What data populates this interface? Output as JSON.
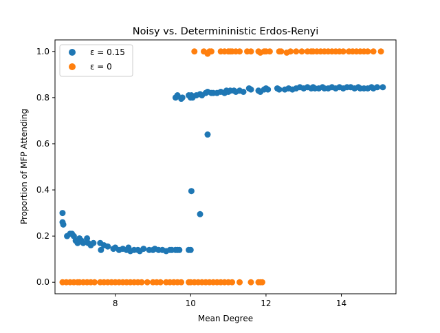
{
  "chart_data": {
    "type": "scatter",
    "title": "Noisy vs. Determininistic Erdos-Renyi",
    "xlabel": "Mean Degree",
    "ylabel": "Proportion of MFP Attending",
    "xlim": [
      6.4,
      15.45
    ],
    "ylim": [
      -0.05,
      1.05
    ],
    "xticks": [
      8,
      10,
      12,
      14
    ],
    "yticks": [
      0.0,
      0.2,
      0.4,
      0.6,
      0.8,
      1.0
    ],
    "xtick_labels": [
      "8",
      "10",
      "12",
      "14"
    ],
    "ytick_labels": [
      "0.0",
      "0.2",
      "0.4",
      "0.6",
      "0.8",
      "1.0"
    ],
    "grid": false,
    "legend_placement": "upper-left",
    "series": [
      {
        "name": "ε = 0.15",
        "color": "#1f77b4",
        "points": [
          [
            6.6,
            0.3
          ],
          [
            6.6,
            0.26
          ],
          [
            6.62,
            0.25
          ],
          [
            6.72,
            0.2
          ],
          [
            6.8,
            0.21
          ],
          [
            6.85,
            0.21
          ],
          [
            6.9,
            0.2
          ],
          [
            6.95,
            0.18
          ],
          [
            7.0,
            0.17
          ],
          [
            7.05,
            0.19
          ],
          [
            7.1,
            0.18
          ],
          [
            7.15,
            0.17
          ],
          [
            7.25,
            0.19
          ],
          [
            7.28,
            0.17
          ],
          [
            7.35,
            0.16
          ],
          [
            7.42,
            0.17
          ],
          [
            7.6,
            0.17
          ],
          [
            7.62,
            0.14
          ],
          [
            7.7,
            0.16
          ],
          [
            7.8,
            0.155
          ],
          [
            7.95,
            0.145
          ],
          [
            8.0,
            0.15
          ],
          [
            8.1,
            0.14
          ],
          [
            8.2,
            0.145
          ],
          [
            8.3,
            0.14
          ],
          [
            8.35,
            0.15
          ],
          [
            8.4,
            0.135
          ],
          [
            8.5,
            0.14
          ],
          [
            8.6,
            0.14
          ],
          [
            8.65,
            0.135
          ],
          [
            8.75,
            0.145
          ],
          [
            8.9,
            0.14
          ],
          [
            9.0,
            0.14
          ],
          [
            9.05,
            0.145
          ],
          [
            9.15,
            0.14
          ],
          [
            9.25,
            0.14
          ],
          [
            9.35,
            0.135
          ],
          [
            9.45,
            0.14
          ],
          [
            9.5,
            0.14
          ],
          [
            9.6,
            0.14
          ],
          [
            9.65,
            0.14
          ],
          [
            9.7,
            0.14
          ],
          [
            9.95,
            0.14
          ],
          [
            10.0,
            0.14
          ],
          [
            10.02,
            0.395
          ],
          [
            10.25,
            0.295
          ],
          [
            10.45,
            0.64
          ],
          [
            9.6,
            0.8
          ],
          [
            9.65,
            0.81
          ],
          [
            9.75,
            0.795
          ],
          [
            9.78,
            0.8
          ],
          [
            9.95,
            0.81
          ],
          [
            10.0,
            0.8
          ],
          [
            10.02,
            0.81
          ],
          [
            10.05,
            0.8
          ],
          [
            10.15,
            0.81
          ],
          [
            10.25,
            0.815
          ],
          [
            10.3,
            0.81
          ],
          [
            10.4,
            0.82
          ],
          [
            10.45,
            0.825
          ],
          [
            10.55,
            0.82
          ],
          [
            10.6,
            0.82
          ],
          [
            10.7,
            0.82
          ],
          [
            10.8,
            0.825
          ],
          [
            10.9,
            0.82
          ],
          [
            10.95,
            0.83
          ],
          [
            11.0,
            0.825
          ],
          [
            11.05,
            0.83
          ],
          [
            11.15,
            0.83
          ],
          [
            11.2,
            0.825
          ],
          [
            11.3,
            0.83
          ],
          [
            11.4,
            0.825
          ],
          [
            11.55,
            0.84
          ],
          [
            11.6,
            0.835
          ],
          [
            11.8,
            0.83
          ],
          [
            11.85,
            0.825
          ],
          [
            11.95,
            0.835
          ],
          [
            12.0,
            0.84
          ],
          [
            12.05,
            0.835
          ],
          [
            12.3,
            0.84
          ],
          [
            12.35,
            0.835
          ],
          [
            12.5,
            0.835
          ],
          [
            12.6,
            0.84
          ],
          [
            12.7,
            0.835
          ],
          [
            12.8,
            0.84
          ],
          [
            12.9,
            0.845
          ],
          [
            13.0,
            0.84
          ],
          [
            13.1,
            0.845
          ],
          [
            13.2,
            0.84
          ],
          [
            13.25,
            0.845
          ],
          [
            13.3,
            0.84
          ],
          [
            13.4,
            0.84
          ],
          [
            13.5,
            0.845
          ],
          [
            13.55,
            0.84
          ],
          [
            13.65,
            0.84
          ],
          [
            13.75,
            0.845
          ],
          [
            13.85,
            0.84
          ],
          [
            13.95,
            0.845
          ],
          [
            14.05,
            0.84
          ],
          [
            14.15,
            0.845
          ],
          [
            14.25,
            0.845
          ],
          [
            14.35,
            0.84
          ],
          [
            14.45,
            0.845
          ],
          [
            14.5,
            0.84
          ],
          [
            14.6,
            0.84
          ],
          [
            14.7,
            0.84
          ],
          [
            14.8,
            0.845
          ],
          [
            14.85,
            0.84
          ],
          [
            14.95,
            0.845
          ],
          [
            15.1,
            0.845
          ]
        ]
      },
      {
        "name": "ε = 0",
        "color": "#ff7f0e",
        "points": [
          [
            6.6,
            0.0
          ],
          [
            6.7,
            0.0
          ],
          [
            6.8,
            0.0
          ],
          [
            6.9,
            0.0
          ],
          [
            7.0,
            0.0
          ],
          [
            7.05,
            0.0
          ],
          [
            7.15,
            0.0
          ],
          [
            7.25,
            0.0
          ],
          [
            7.35,
            0.0
          ],
          [
            7.45,
            0.0
          ],
          [
            7.6,
            0.0
          ],
          [
            7.7,
            0.0
          ],
          [
            7.8,
            0.0
          ],
          [
            7.9,
            0.0
          ],
          [
            8.0,
            0.0
          ],
          [
            8.1,
            0.0
          ],
          [
            8.2,
            0.0
          ],
          [
            8.3,
            0.0
          ],
          [
            8.4,
            0.0
          ],
          [
            8.5,
            0.0
          ],
          [
            8.6,
            0.0
          ],
          [
            8.7,
            0.0
          ],
          [
            8.85,
            0.0
          ],
          [
            9.0,
            0.0
          ],
          [
            9.1,
            0.0
          ],
          [
            9.2,
            0.0
          ],
          [
            9.35,
            0.0
          ],
          [
            9.45,
            0.0
          ],
          [
            9.55,
            0.0
          ],
          [
            9.65,
            0.0
          ],
          [
            9.75,
            0.0
          ],
          [
            9.95,
            0.0
          ],
          [
            10.0,
            0.0
          ],
          [
            10.1,
            0.0
          ],
          [
            10.2,
            0.0
          ],
          [
            10.3,
            0.0
          ],
          [
            10.4,
            0.0
          ],
          [
            10.5,
            0.0
          ],
          [
            10.6,
            0.0
          ],
          [
            10.7,
            0.0
          ],
          [
            10.8,
            0.0
          ],
          [
            10.9,
            0.0
          ],
          [
            11.0,
            0.0
          ],
          [
            11.1,
            0.0
          ],
          [
            11.3,
            0.0
          ],
          [
            11.6,
            0.0
          ],
          [
            11.8,
            0.0
          ],
          [
            11.85,
            0.0
          ],
          [
            11.9,
            0.0
          ],
          [
            10.1,
            1.0
          ],
          [
            10.35,
            1.0
          ],
          [
            10.45,
            0.99
          ],
          [
            10.5,
            1.0
          ],
          [
            10.55,
            1.0
          ],
          [
            10.8,
            1.0
          ],
          [
            10.9,
            1.0
          ],
          [
            11.0,
            1.0
          ],
          [
            11.05,
            1.0
          ],
          [
            11.1,
            1.0
          ],
          [
            11.2,
            1.0
          ],
          [
            11.3,
            1.0
          ],
          [
            11.5,
            1.0
          ],
          [
            11.6,
            1.0
          ],
          [
            11.8,
            1.0
          ],
          [
            11.85,
            0.995
          ],
          [
            11.95,
            1.0
          ],
          [
            12.0,
            1.0
          ],
          [
            12.1,
            1.0
          ],
          [
            12.35,
            1.0
          ],
          [
            12.4,
            1.0
          ],
          [
            12.55,
            0.995
          ],
          [
            12.65,
            1.0
          ],
          [
            12.8,
            1.0
          ],
          [
            12.95,
            1.0
          ],
          [
            13.1,
            1.0
          ],
          [
            13.2,
            1.0
          ],
          [
            13.25,
            1.0
          ],
          [
            13.35,
            1.0
          ],
          [
            13.45,
            1.0
          ],
          [
            13.55,
            1.0
          ],
          [
            13.65,
            1.0
          ],
          [
            13.75,
            1.0
          ],
          [
            13.85,
            1.0
          ],
          [
            13.95,
            1.0
          ],
          [
            14.05,
            1.0
          ],
          [
            14.2,
            1.0
          ],
          [
            14.3,
            1.0
          ],
          [
            14.4,
            1.0
          ],
          [
            14.5,
            1.0
          ],
          [
            14.6,
            1.0
          ],
          [
            14.7,
            1.0
          ],
          [
            14.85,
            1.0
          ],
          [
            15.05,
            1.0
          ]
        ]
      }
    ]
  }
}
